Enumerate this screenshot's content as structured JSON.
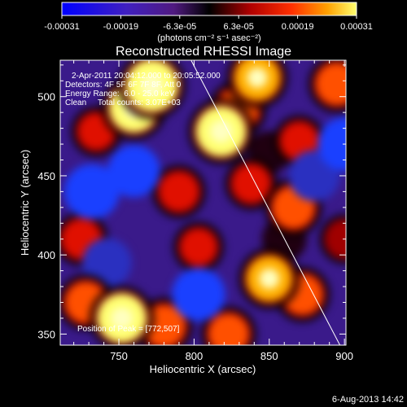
{
  "chart_data": {
    "type": "heatmap",
    "title": "Reconstructed RHESSI Image",
    "xlabel": "Heliocentric X (arcsec)",
    "ylabel": "Heliocentric Y (arcsec)",
    "xlim": [
      711,
      901
    ],
    "ylim": [
      343,
      523
    ],
    "x_ticks": [
      750,
      800,
      850,
      900
    ],
    "y_ticks": [
      350,
      400,
      450,
      500
    ],
    "annotations": [
      "2-Apr-2011 20:04:12.000 to 20:05:52.000",
      "Detectors: 4F 5F 6F 7F 8F, Att 0",
      "Energy Range:  6.0 - 25.0 keV",
      "Clean     Total counts: 3.07E+03",
      "Position of Peak = [772,507]"
    ],
    "colorbar": {
      "ticks": [
        "-0.00031",
        "-0.00019",
        "-6.3e-05",
        "6.3e-05",
        "0.00019",
        "0.00031"
      ],
      "range": [
        -0.00031,
        0.00031
      ],
      "unit_label": "(photons cm⁻² s⁻¹ asec⁻²)"
    },
    "limb_line": {
      "x": [
        798,
        897
      ],
      "y": [
        523,
        343
      ]
    },
    "sources": [
      {
        "x": 772,
        "y": 507,
        "value": 0.00031
      },
      {
        "x": 760,
        "y": 493,
        "value": 0.00028
      },
      {
        "x": 818,
        "y": 478,
        "value": 0.00029
      },
      {
        "x": 829,
        "y": 492,
        "value": 0.0002
      },
      {
        "x": 842,
        "y": 512,
        "value": 0.00024
      },
      {
        "x": 895,
        "y": 508,
        "value": 0.0002
      },
      {
        "x": 870,
        "y": 472,
        "value": 0.00014
      },
      {
        "x": 735,
        "y": 478,
        "value": 0.00013
      },
      {
        "x": 790,
        "y": 440,
        "value": 0.00016
      },
      {
        "x": 838,
        "y": 445,
        "value": 0.00015
      },
      {
        "x": 866,
        "y": 430,
        "value": 0.0002
      },
      {
        "x": 725,
        "y": 410,
        "value": 0.00016
      },
      {
        "x": 803,
        "y": 405,
        "value": 0.00013
      },
      {
        "x": 900,
        "y": 410,
        "value": 0.00012
      },
      {
        "x": 850,
        "y": 385,
        "value": 0.00024
      },
      {
        "x": 872,
        "y": 375,
        "value": 0.00018
      },
      {
        "x": 728,
        "y": 370,
        "value": 0.00019
      },
      {
        "x": 752,
        "y": 360,
        "value": 0.00028
      },
      {
        "x": 780,
        "y": 355,
        "value": 0.0002
      },
      {
        "x": 823,
        "y": 350,
        "value": 0.00018
      },
      {
        "x": 760,
        "y": 453,
        "value": -0.00021
      },
      {
        "x": 732,
        "y": 440,
        "value": -0.00024
      },
      {
        "x": 880,
        "y": 450,
        "value": -0.0002
      },
      {
        "x": 803,
        "y": 375,
        "value": -0.00022
      },
      {
        "x": 742,
        "y": 395,
        "value": -0.00018
      },
      {
        "x": 860,
        "y": 410,
        "value": -0.00013
      },
      {
        "x": 900,
        "y": 470,
        "value": -0.00022
      },
      {
        "x": 850,
        "y": 465,
        "value": -0.0001
      }
    ]
  },
  "footer": {
    "timestamp": "6-Aug-2013 14:42"
  }
}
